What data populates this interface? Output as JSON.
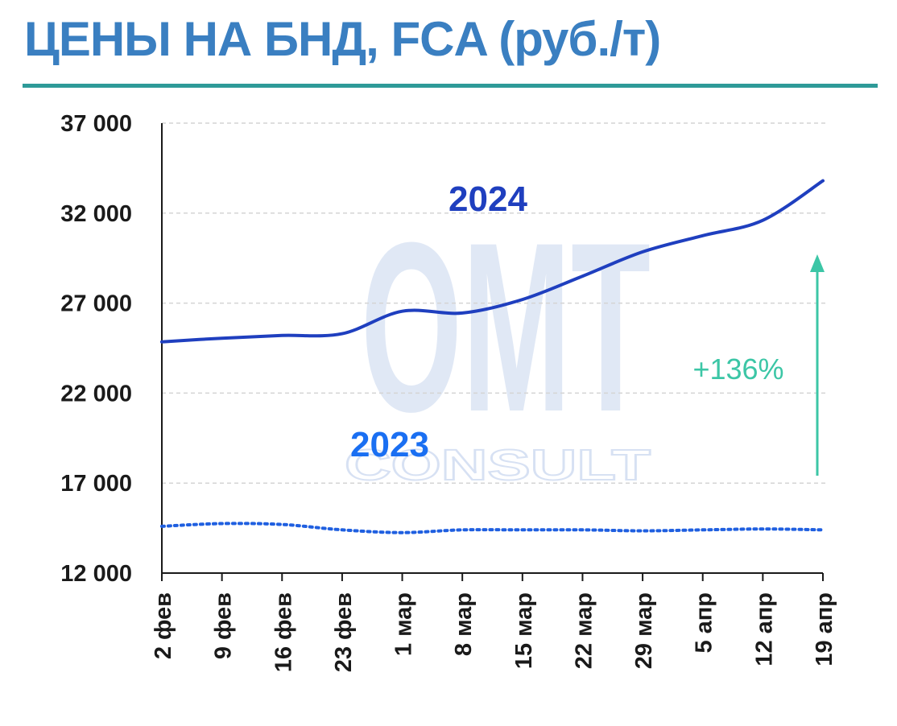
{
  "title": "ЦЕНЫ НА БНД, FCA (руб./т)",
  "colors": {
    "title": "#3a7fc1",
    "rule": "#2e9a98",
    "series_2024": "#1f3fbf",
    "series_2023": "#1f5fe0",
    "label_2023": "#1a6ff2",
    "annotation": "#3cc6a6",
    "grid": "#d4d4d4",
    "axis": "#1a1a1a"
  },
  "watermark": {
    "top": "OMT",
    "bottom": "CONSULT"
  },
  "chart_data": {
    "type": "line",
    "categories": [
      "2 фев",
      "9 фев",
      "16 фев",
      "23 фев",
      "1 мар",
      "8 мар",
      "15 мар",
      "22 мар",
      "29 мар",
      "5 апр",
      "12 апр",
      "19 апр"
    ],
    "ylim": [
      12000,
      37000
    ],
    "yticks": [
      12000,
      17000,
      22000,
      27000,
      32000,
      37000
    ],
    "ytick_labels": [
      "12 000",
      "17 000",
      "22 000",
      "27 000",
      "32 000",
      "37 000"
    ],
    "grid": "horizontal dashed",
    "series": [
      {
        "name": "2024",
        "style": "solid",
        "values": [
          24850,
          25050,
          25200,
          25300,
          26550,
          26450,
          27200,
          28500,
          29850,
          30750,
          31600,
          33800
        ]
      },
      {
        "name": "2023",
        "style": "dotted",
        "values": [
          14600,
          14750,
          14700,
          14400,
          14250,
          14400,
          14400,
          14400,
          14350,
          14400,
          14450,
          14400
        ]
      }
    ],
    "annotations": [
      {
        "text": "+136%",
        "type": "arrow-up"
      }
    ]
  }
}
